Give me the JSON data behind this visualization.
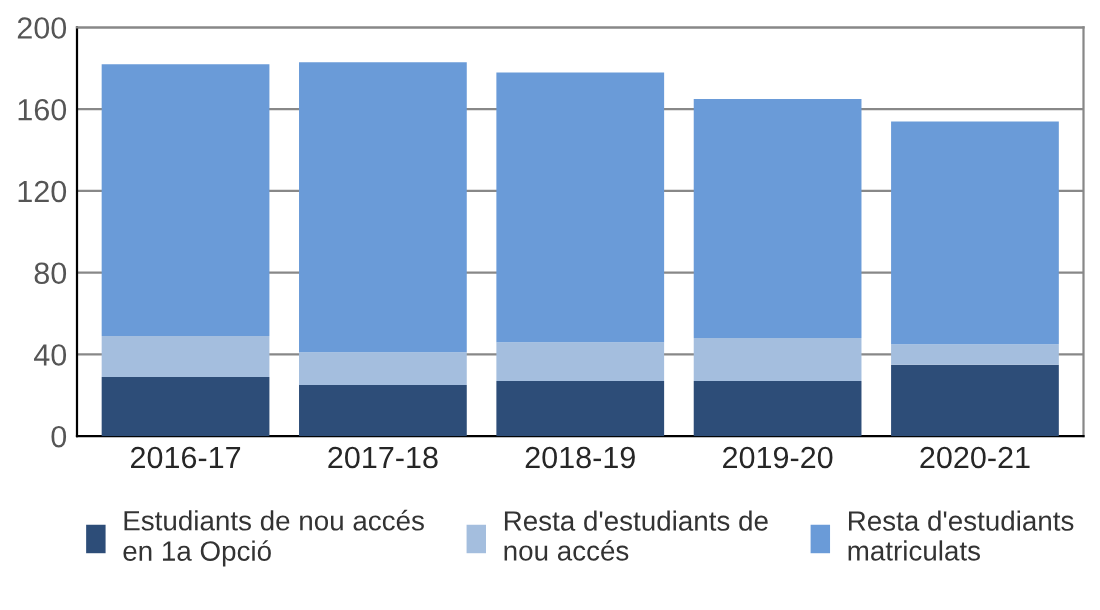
{
  "chart_data": {
    "type": "bar",
    "stacked": true,
    "categories": [
      "2016-17",
      "2017-18",
      "2018-19",
      "2019-20",
      "2020-21"
    ],
    "series": [
      {
        "name": "Estudiants de nou accés\nen 1a Opció",
        "color": "#2d4d78",
        "values": [
          29,
          25,
          27,
          27,
          35
        ]
      },
      {
        "name": "Resta d'estudiants de\nnou accés",
        "color": "#a4bede",
        "values": [
          20,
          16,
          19,
          21,
          10
        ]
      },
      {
        "name": "Resta d'estudiants\nmatriculats",
        "color": "#6a9bd8",
        "values": [
          133,
          142,
          132,
          117,
          109
        ]
      }
    ],
    "ylim": [
      0,
      200
    ],
    "yticks": [
      0,
      40,
      80,
      120,
      160,
      200
    ],
    "grid": "y",
    "legend": "bottom"
  }
}
